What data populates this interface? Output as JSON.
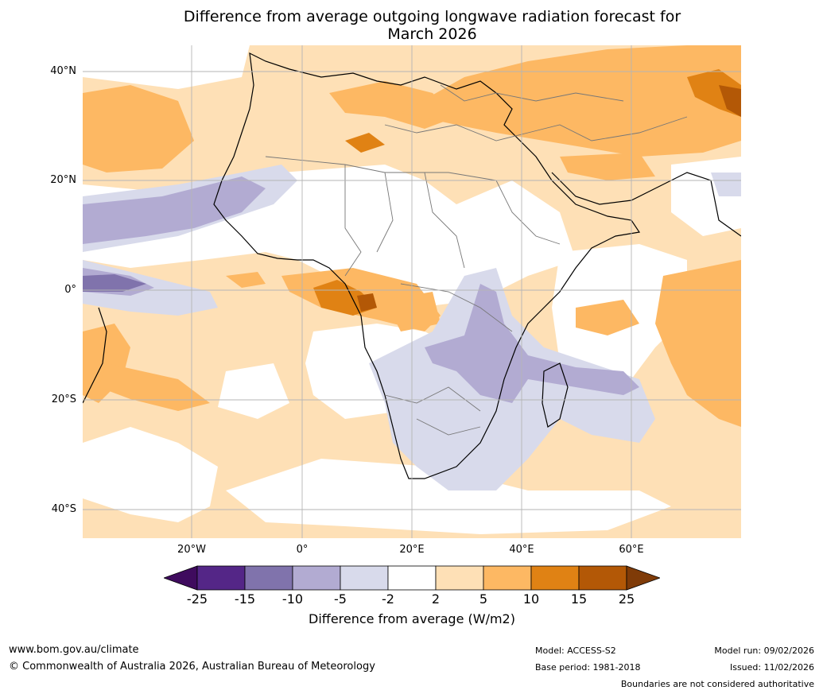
{
  "title_line1": "Difference from average outgoing longwave radiation forecast for",
  "title_line2": "March 2026",
  "lat_labels": [
    "40°N",
    "20°N",
    "0°",
    "20°S",
    "40°S"
  ],
  "lon_labels": [
    "20°W",
    "0°",
    "20°E",
    "40°E",
    "60°E"
  ],
  "colorbar": {
    "title": "Difference from average (W/m2)",
    "ticks": [
      "-25",
      "-15",
      "-10",
      "-5",
      "-2",
      "2",
      "5",
      "10",
      "15",
      "25"
    ],
    "colors": [
      "#3f0b5e",
      "#542687",
      "#8073ac",
      "#b2abd2",
      "#d8daeb",
      "#ffffff",
      "#fee0b6",
      "#fdb863",
      "#e08214",
      "#b35806",
      "#7f3b08"
    ]
  },
  "footer": {
    "website": "www.bom.gov.au/climate",
    "copyright": "© Commonwealth of Australia 2026, Australian Bureau of Meteorology",
    "model": "Model: ACCESS-S2",
    "base_period": "Base period: 1981-2018",
    "model_run": "Model run: 09/02/2026",
    "issued": "Issued: 11/02/2026",
    "disclaimer": "Boundaries are not considered authoritative"
  }
}
